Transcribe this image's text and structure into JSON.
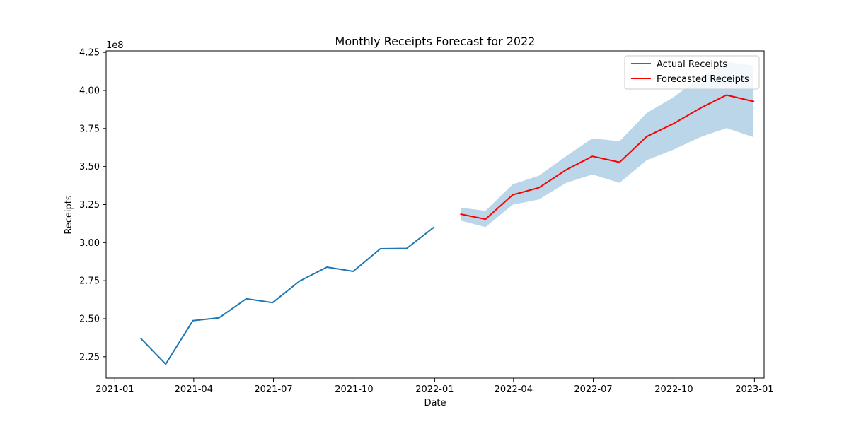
{
  "chart_data": {
    "type": "line",
    "title": "Monthly Receipts Forecast for 2022",
    "xlabel": "Date",
    "ylabel": "Receipts",
    "y_offset_label": "1e8",
    "xlim": [
      "2020-12-22",
      "2023-01-12"
    ],
    "ylim": [
      211000000,
      426000000
    ],
    "x_ticks": [
      {
        "date": "2021-01-01",
        "label": "2021-01"
      },
      {
        "date": "2021-04-01",
        "label": "2021-04"
      },
      {
        "date": "2021-07-01",
        "label": "2021-07"
      },
      {
        "date": "2021-10-01",
        "label": "2021-10"
      },
      {
        "date": "2022-01-01",
        "label": "2022-01"
      },
      {
        "date": "2022-04-01",
        "label": "2022-04"
      },
      {
        "date": "2022-07-01",
        "label": "2022-07"
      },
      {
        "date": "2022-10-01",
        "label": "2022-10"
      },
      {
        "date": "2023-01-01",
        "label": "2023-01"
      }
    ],
    "y_ticks": [
      {
        "value": 225000000,
        "label": "2.25"
      },
      {
        "value": 250000000,
        "label": "2.50"
      },
      {
        "value": 275000000,
        "label": "2.75"
      },
      {
        "value": 300000000,
        "label": "3.00"
      },
      {
        "value": 325000000,
        "label": "3.25"
      },
      {
        "value": 350000000,
        "label": "3.50"
      },
      {
        "value": 375000000,
        "label": "3.75"
      },
      {
        "value": 400000000,
        "label": "4.00"
      },
      {
        "value": 425000000,
        "label": "4.25"
      }
    ],
    "grid": false,
    "legend_position": "top-right",
    "series": [
      {
        "name": "Actual Receipts",
        "color": "#1f77b4",
        "points": [
          {
            "x": "2021-01-31",
            "y": 236800000
          },
          {
            "x": "2021-02-28",
            "y": 220200000
          },
          {
            "x": "2021-03-31",
            "y": 248700000
          },
          {
            "x": "2021-04-30",
            "y": 250600000
          },
          {
            "x": "2021-05-31",
            "y": 263100000
          },
          {
            "x": "2021-06-30",
            "y": 260600000
          },
          {
            "x": "2021-07-31",
            "y": 274800000
          },
          {
            "x": "2021-08-31",
            "y": 283900000
          },
          {
            "x": "2021-09-30",
            "y": 281100000
          },
          {
            "x": "2021-10-31",
            "y": 296000000
          },
          {
            "x": "2021-11-30",
            "y": 296200000
          },
          {
            "x": "2021-12-31",
            "y": 310000000
          }
        ]
      },
      {
        "name": "Forecasted Receipts",
        "color": "#ff0000",
        "points": [
          {
            "x": "2022-01-31",
            "y": 318700000
          },
          {
            "x": "2022-02-28",
            "y": 315400000
          },
          {
            "x": "2022-03-31",
            "y": 331400000
          },
          {
            "x": "2022-04-30",
            "y": 336100000
          },
          {
            "x": "2022-05-31",
            "y": 347800000
          },
          {
            "x": "2022-06-30",
            "y": 356700000
          },
          {
            "x": "2022-07-31",
            "y": 352800000
          },
          {
            "x": "2022-08-31",
            "y": 369700000
          },
          {
            "x": "2022-09-30",
            "y": 378000000
          },
          {
            "x": "2022-10-31",
            "y": 388300000
          },
          {
            "x": "2022-11-30",
            "y": 397000000
          },
          {
            "x": "2022-12-31",
            "y": 392800000
          }
        ]
      }
    ],
    "confidence_band": {
      "color": "#1f77b4",
      "opacity": 0.3,
      "lower": [
        314400000,
        310200000,
        324900000,
        328400000,
        339200000,
        344800000,
        339300000,
        354100000,
        361000000,
        369300000,
        375300000,
        369300000
      ],
      "upper": [
        322900000,
        320900000,
        338300000,
        344000000,
        356800000,
        368500000,
        366600000,
        385200000,
        395300000,
        408500000,
        418800000,
        416400000
      ]
    }
  }
}
